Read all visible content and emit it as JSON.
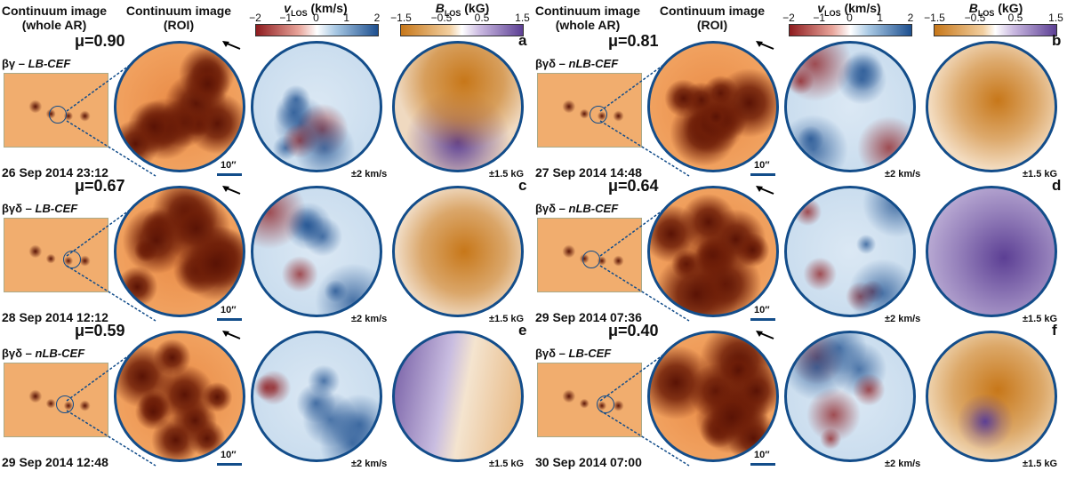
{
  "headers": {
    "whole_ar": "Continuum image\n(whole AR)",
    "roi": "Continuum image\n(ROI)",
    "vlos_title": "v",
    "vlos_sub": "LOS",
    "vlos_unit": " (km/s)",
    "blos_title": "B",
    "blos_sub": "LOS",
    "blos_unit": " (kG)",
    "vlos_ticks": [
      "−2",
      "−1",
      "0",
      "1",
      "2"
    ],
    "blos_ticks": [
      "−1.5",
      "−0.5",
      "0.5",
      "1.5"
    ]
  },
  "colors": {
    "ring": "#134d8a",
    "cont_light": "#f3a867",
    "cont_dark": "#5a1305",
    "vel_red": "#8e1b1e",
    "vel_blue": "#1d4f8f",
    "b_orange": "#c77719",
    "b_purple": "#5c3f94"
  },
  "panels": [
    {
      "id": "a",
      "mu": "μ=0.90",
      "cls": "βγ",
      "typ": "LB-CEF",
      "date": "26 Sep 2014 23:12",
      "scale": "10′′",
      "vunit": "±2 km/s",
      "bunit": "±1.5 kG",
      "bmode": "orange-top"
    },
    {
      "id": "b",
      "mu": "μ=0.81",
      "cls": "βγδ",
      "typ": "nLB-CEF",
      "date": "27 Sep 2014 14:48",
      "scale": "10′′",
      "vunit": "±2 km/s",
      "bunit": "±1.5 kG",
      "bmode": "orange-light"
    },
    {
      "id": "c",
      "mu": "μ=0.67",
      "cls": "βγδ",
      "typ": "LB-CEF",
      "date": "28 Sep 2014 12:12",
      "scale": "10′′",
      "vunit": "±2 km/s",
      "bunit": "±1.5 kG",
      "bmode": "orange"
    },
    {
      "id": "d",
      "mu": "μ=0.64",
      "cls": "βγδ",
      "typ": "nLB-CEF",
      "date": "29 Sep 2014 07:36",
      "scale": "10′′",
      "vunit": "±2 km/s",
      "bunit": "±1.5 kG",
      "bmode": "purple"
    },
    {
      "id": "e",
      "mu": "μ=0.59",
      "cls": "βγδ",
      "typ": "nLB-CEF",
      "date": "29 Sep 2014 12:48",
      "scale": "10′′",
      "vunit": "±2 km/s",
      "bunit": "±1.5 kG",
      "bmode": "split"
    },
    {
      "id": "f",
      "mu": "μ=0.40",
      "cls": "βγδ",
      "typ": "LB-CEF",
      "date": "30 Sep 2014 07:00",
      "scale": "10′′",
      "vunit": "±2 km/s",
      "bunit": "±1.5 kG",
      "bmode": "orange-purple"
    }
  ]
}
